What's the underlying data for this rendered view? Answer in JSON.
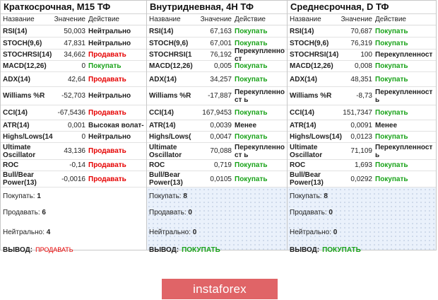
{
  "header": {
    "col_name": "Название",
    "col_value": "Значение",
    "col_action": "Действие"
  },
  "panels": [
    {
      "title": "Краткосрочная, M15 ТФ",
      "rows": [
        {
          "name": "RSI(14)",
          "value": "50,003",
          "action": "Нейтрально",
          "kind": "neutral"
        },
        {
          "name": "STOCH(9,6)",
          "value": "47,831",
          "action": "Нейтрально",
          "kind": "neutral"
        },
        {
          "name": "STOCHRSI(14)",
          "value": "34,662",
          "action": "Продавать",
          "kind": "sell"
        },
        {
          "name": "MACD(12,26)",
          "value": "0",
          "action": "Покупать",
          "kind": "buy"
        },
        {
          "name": "ADX(14)",
          "value": "42,64",
          "action": "Продавать",
          "kind": "sell"
        },
        {
          "name": "Williams %R",
          "value": "-52,703",
          "action": "Нейтрально",
          "kind": "neutral"
        },
        {
          "name": "CCI(14)",
          "value": "-67,5436",
          "action": "Продавать",
          "kind": "sell"
        },
        {
          "name": "ATR(14)",
          "value": "0,001",
          "action": "Высокая волат-",
          "kind": "highvol"
        },
        {
          "name": "Highs/Lows(14",
          "value": "0",
          "action": "Нейтрально",
          "kind": "neutral"
        },
        {
          "name": "Ultimate Oscillator",
          "value": "43,136",
          "action": "Продавать",
          "kind": "sell"
        },
        {
          "name": "ROC",
          "value": "-0,14",
          "action": "Продавать",
          "kind": "sell"
        },
        {
          "name": "Bull/Bear Power(13)",
          "value": "-0,0016",
          "action": "Продавать",
          "kind": "sell"
        }
      ],
      "summary": {
        "buy_label": "Покупать:",
        "buy_count": "1",
        "sell_label": "Продавать:",
        "sell_count": "6",
        "neutral_label": "Нейтрально:",
        "neutral_count": "4",
        "verdict_label": "ВЫВОД:",
        "verdict_value": "ПРОДАВАТЬ",
        "verdict_kind": "sell"
      }
    },
    {
      "title": "Внутридневная, 4H ТФ",
      "rows": [
        {
          "name": "RSI(14)",
          "value": "67,163",
          "action": "Покупать",
          "kind": "buy"
        },
        {
          "name": "STOCH(9,6)",
          "value": "67,001",
          "action": "Покупать",
          "kind": "buy"
        },
        {
          "name": "STOCHRSI(1",
          "value": "76,192",
          "action": "Перекупленност",
          "kind": "overbought"
        },
        {
          "name": "MACD(12,26)",
          "value": "0,005",
          "action": "Покупать",
          "kind": "buy"
        },
        {
          "name": "ADX(14)",
          "value": "34,257",
          "action": "Покупать",
          "kind": "buy"
        },
        {
          "name": "Williams %R",
          "value": "-17,887",
          "action": "Перекупленност ь",
          "kind": "overbought"
        },
        {
          "name": "CCI(14)",
          "value": "167,9453",
          "action": "Покупать",
          "kind": "buy"
        },
        {
          "name": "ATR(14)",
          "value": "0,0039",
          "action": "Менее",
          "kind": "less"
        },
        {
          "name": "Highs/Lows(",
          "value": "0,0047",
          "action": "Покупать",
          "kind": "buy"
        },
        {
          "name": "Ultimate Oscillator",
          "value": "70,088",
          "action": "Перекупленност ь",
          "kind": "overbought"
        },
        {
          "name": "ROC",
          "value": "0,719",
          "action": "Покупать",
          "kind": "buy"
        },
        {
          "name": "Bull/Bear Power(13)",
          "value": "0,0105",
          "action": "Покупать",
          "kind": "buy"
        }
      ],
      "summary": {
        "buy_label": "Покупать:",
        "buy_count": "8",
        "sell_label": "Продавать:",
        "sell_count": "0",
        "neutral_label": "Нейтрально:",
        "neutral_count": "0",
        "verdict_label": "ВЫВОД:",
        "verdict_value": "ПОКУПАТЬ",
        "verdict_kind": "buy"
      }
    },
    {
      "title": "Среднесрочная, D ТФ",
      "rows": [
        {
          "name": "RSI(14)",
          "value": "70,687",
          "action": "Покупать",
          "kind": "buy"
        },
        {
          "name": "STOCH(9,6)",
          "value": "76,319",
          "action": "Покупать",
          "kind": "buy"
        },
        {
          "name": "STOCHRSI(14)",
          "value": "100",
          "action": "Перекупленност",
          "kind": "overbought"
        },
        {
          "name": "MACD(12,26)",
          "value": "0,008",
          "action": "Покупать",
          "kind": "buy"
        },
        {
          "name": "ADX(14)",
          "value": "48,351",
          "action": "Покупать",
          "kind": "buy"
        },
        {
          "name": "Williams %R",
          "value": "-8,73",
          "action": "Перекупленност ь",
          "kind": "overbought"
        },
        {
          "name": "CCI(14)",
          "value": "151,7347",
          "action": "Покупать",
          "kind": "buy"
        },
        {
          "name": "ATR(14)",
          "value": "0,0091",
          "action": "Менее",
          "kind": "less"
        },
        {
          "name": "Highs/Lows(14)",
          "value": "0,0123",
          "action": "Покупать",
          "kind": "buy"
        },
        {
          "name": "Ultimate Oscillator",
          "value": "71,109",
          "action": "Перекупленност ь",
          "kind": "overbought"
        },
        {
          "name": "ROC",
          "value": "1,693",
          "action": "Покупать",
          "kind": "buy"
        },
        {
          "name": "Bull/Bear Power(13)",
          "value": "0,0292",
          "action": "Покупать",
          "kind": "buy"
        }
      ],
      "summary": {
        "buy_label": "Покупать:",
        "buy_count": "8",
        "sell_label": "Продавать:",
        "sell_count": "0",
        "neutral_label": "Нейтрально:",
        "neutral_count": "0",
        "verdict_label": "ВЫВОД:",
        "verdict_value": "ПОКУПАТЬ",
        "verdict_kind": "buy"
      }
    }
  ],
  "logo": {
    "text": "instaforex",
    "color": "#e06467"
  },
  "colors": {
    "buy": "#1aa31a",
    "sell": "#e60000",
    "text": "#222222"
  }
}
